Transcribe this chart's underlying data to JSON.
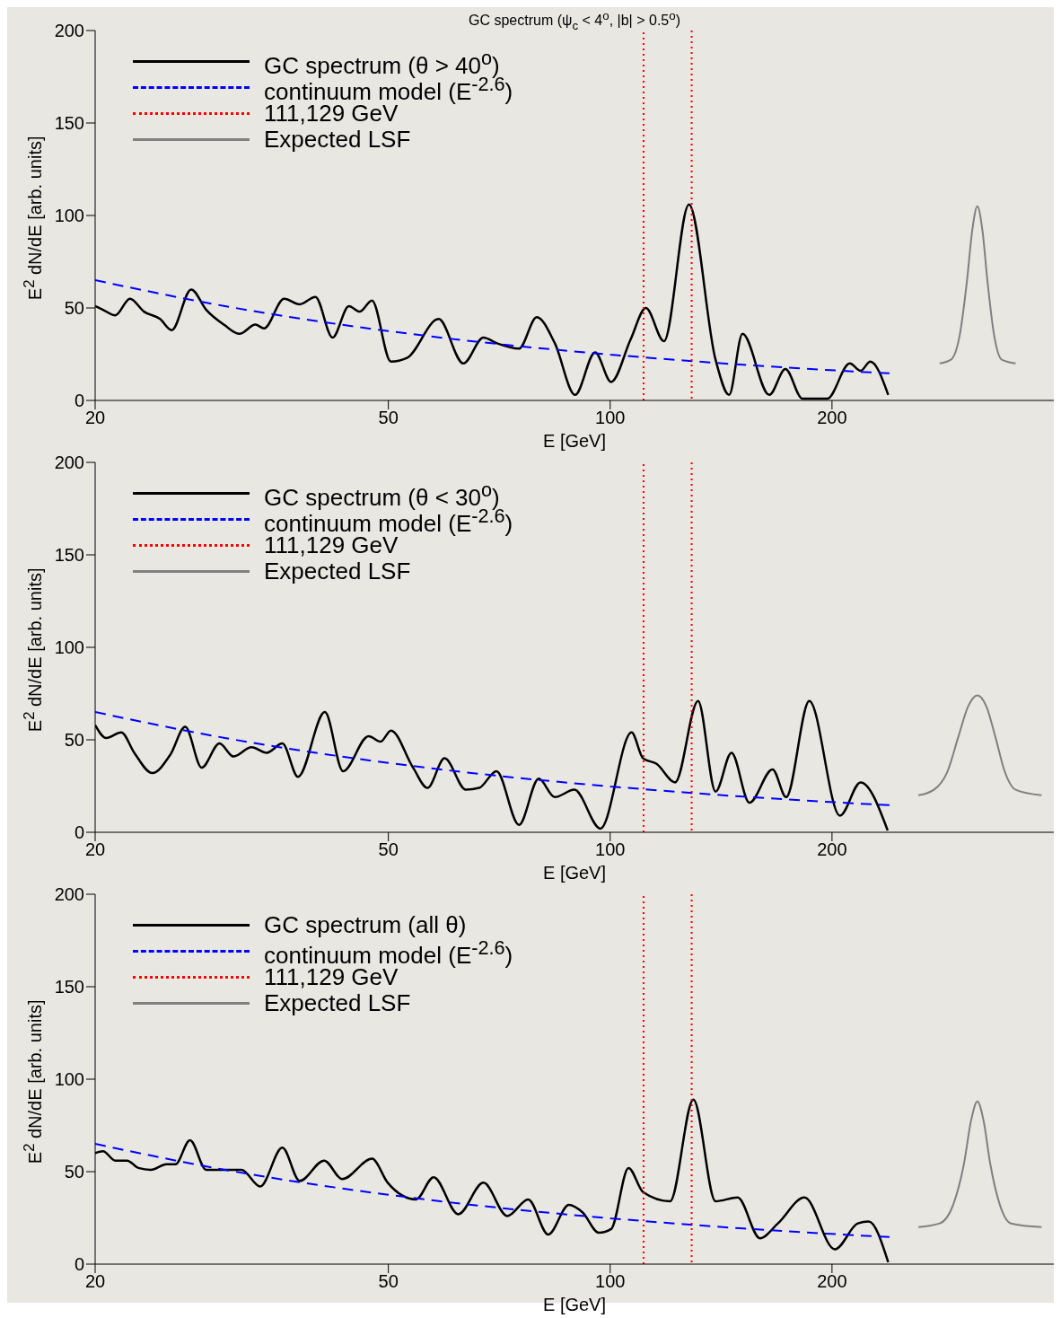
{
  "chart_data": [
    {
      "type": "line",
      "title": "GC spectrum (ψ$_{c}$ < 4$^{o}$, |b| > 0.5$^{o}$)",
      "xlabel": "E [GeV]",
      "ylabel": "E$^{2}$ dN/dE [arb. units]",
      "log": "x",
      "xlim": [
        20,
        400
      ],
      "xticks": [
        20,
        50,
        100,
        200
      ],
      "ylim": [
        0,
        200
      ],
      "yticks": [
        0,
        50,
        100,
        150,
        200
      ],
      "legend": "top left",
      "series": [
        {
          "name": "GC spectrum (θ > 40$^{o}$)",
          "color": "#000000",
          "x": [
            20,
            20.5,
            21.3,
            22.3,
            23.3,
            24.5,
            25.4,
            27.0,
            28.3,
            29.9,
            31.4,
            33.0,
            33.9,
            36.1,
            37.9,
            39.8,
            42.0,
            44.2,
            45.7,
            47.5,
            50.4,
            53.0,
            58.5,
            63.2,
            67.3,
            70.1,
            75.2,
            79.5,
            84.1,
            89.6,
            95.4,
            100.3,
            106.6,
            111.8,
            118.3,
            127.9,
            139,
            145,
            151.2,
            164.4,
            172.9,
            182.3,
            197.1,
            211.4,
            218.7,
            225.4,
            238.4
          ],
          "values": [
            51,
            49,
            46,
            55,
            48,
            44,
            38,
            60,
            49,
            41,
            36,
            41,
            39,
            55,
            52,
            56,
            34,
            51,
            48,
            54,
            21,
            23,
            44,
            20,
            34,
            31,
            28,
            45,
            31,
            3,
            26,
            10,
            33,
            50,
            32,
            106,
            22,
            3,
            36,
            3,
            17,
            1,
            1,
            20,
            16,
            21,
            3
          ]
        },
        {
          "name": "continuum model (E$^{-2.6}$)",
          "color": "#0000ff",
          "line_style": "dashed",
          "x": [
            20,
            30,
            50,
            75,
            100,
            150,
            240
          ],
          "values": [
            65,
            51,
            37.5,
            29.4,
            24.8,
            19.4,
            14.6
          ]
        },
        {
          "name": "111,129 GeV",
          "color": "#ff0000",
          "line_style": "dotted",
          "x": [
            111,
            111,
            120,
            129,
            129
          ],
          "values": [
            0,
            200,
            null,
            200,
            0
          ]
        },
        {
          "name": "Expected LSF",
          "color": "#808080",
          "x": [
            280,
            290,
            298,
            305,
            310,
            315,
            320,
            325,
            332,
            340,
            355
          ],
          "values": [
            20,
            22,
            35,
            65,
            92,
            105,
            92,
            65,
            35,
            22,
            20
          ]
        }
      ]
    },
    {
      "type": "line",
      "xlabel": "E [GeV]",
      "ylabel": "E$^{2}$ dN/dE [arb. units]",
      "log": "x",
      "xlim": [
        20,
        400
      ],
      "xticks": [
        20,
        50,
        100,
        200
      ],
      "ylim": [
        0,
        200
      ],
      "yticks": [
        0,
        50,
        100,
        150,
        200
      ],
      "legend": "top left",
      "series": [
        {
          "name": "GC spectrum (θ < 30$^{o}$)",
          "color": "#000000",
          "x": [
            20,
            20.7,
            21.7,
            22.6,
            23.9,
            25.3,
            26.5,
            27.9,
            29.5,
            30.8,
            32.6,
            34.2,
            35.9,
            37.7,
            41.0,
            43.4,
            47.0,
            48.8,
            50.4,
            54.0,
            56.5,
            59.6,
            63.7,
            66.4,
            70.1,
            75.2,
            80.0,
            84.1,
            89.4,
            97.0,
            106.9,
            110.8,
            115.6,
            122.5,
            131.6,
            139,
            146.1,
            154.5,
            166.1,
            173.3,
            186.3,
            205,
            218.7,
            238
          ],
          "values": [
            58,
            51,
            54,
            43,
            32,
            42,
            57,
            35,
            48,
            41,
            46,
            43,
            48,
            30,
            65,
            33,
            52,
            49,
            55,
            35,
            24,
            40,
            23,
            24,
            33,
            4,
            29,
            19,
            23,
            2,
            54,
            40,
            37,
            27,
            71,
            22,
            43,
            16,
            34,
            19,
            71,
            9,
            27,
            1
          ]
        },
        {
          "name": "continuum model (E$^{-2.6}$)",
          "color": "#0000ff",
          "line_style": "dashed",
          "x": [
            20,
            30,
            50,
            75,
            100,
            150,
            240
          ],
          "values": [
            65,
            51,
            37.5,
            29.4,
            24.8,
            19.4,
            14.6
          ]
        },
        {
          "name": "111,129 GeV",
          "color": "#ff0000",
          "line_style": "dotted",
          "x": [
            111,
            111,
            120,
            129,
            129
          ],
          "values": [
            0,
            200,
            null,
            200,
            0
          ]
        },
        {
          "name": "Expected LSF",
          "color": "#808080",
          "x": [
            262,
            275,
            287,
            297,
            306,
            315,
            324,
            333,
            343,
            355,
            385
          ],
          "values": [
            20,
            23,
            33,
            52,
            68,
            74,
            68,
            52,
            33,
            23,
            20
          ]
        }
      ]
    },
    {
      "type": "line",
      "xlabel": "E [GeV]",
      "ylabel": "E$^{2}$ dN/dE [arb. units]",
      "log": "x",
      "xlim": [
        20,
        400
      ],
      "xticks": [
        20,
        50,
        100,
        200
      ],
      "ylim": [
        0,
        200
      ],
      "yticks": [
        0,
        50,
        100,
        150,
        200
      ],
      "legend": "top left",
      "series": [
        {
          "name": "GC spectrum (all θ)",
          "color": "#000000",
          "x": [
            20,
            20.5,
            21.3,
            22.1,
            22.9,
            23.8,
            25.0,
            25.7,
            26.9,
            28.3,
            29.9,
            31.6,
            33.5,
            35.9,
            37.9,
            40.9,
            43.3,
            47.5,
            49.9,
            54.5,
            57.6,
            62.2,
            67.3,
            72.5,
            77.4,
            82.4,
            87.9,
            91.7,
            96.5,
            100.3,
            105.9,
            110.8,
            120.6,
            129.7,
            139,
            148.9,
            159.7,
            168.9,
            183.5,
            201.8,
            216.8,
            224.3,
            238.4
          ],
          "values": [
            60,
            61,
            56,
            56,
            52,
            51,
            54,
            54,
            67,
            51,
            51,
            51,
            42,
            63,
            45,
            56,
            46,
            57,
            44,
            35,
            47,
            27,
            44,
            26,
            35,
            16,
            32,
            28,
            17,
            19,
            52,
            39,
            34,
            89,
            34,
            36,
            14,
            22,
            36,
            8,
            22,
            23,
            1
          ]
        },
        {
          "name": "continuum model (E$^{-2.6}$)",
          "color": "#0000ff",
          "line_style": "dashed",
          "x": [
            20,
            30,
            50,
            75,
            100,
            150,
            240
          ],
          "values": [
            65,
            51,
            37.5,
            29.4,
            24.8,
            19.4,
            14.6
          ]
        },
        {
          "name": "111,129 GeV",
          "color": "#ff0000",
          "line_style": "dotted",
          "x": [
            111,
            111,
            120,
            129,
            129
          ],
          "values": [
            0,
            200,
            null,
            200,
            0
          ]
        },
        {
          "name": "Expected LSF",
          "color": "#808080",
          "x": [
            262,
            280,
            292,
            302,
            309,
            315,
            321,
            328,
            338,
            350,
            385
          ],
          "values": [
            20,
            22,
            32,
            54,
            78,
            88,
            78,
            54,
            32,
            22,
            20
          ]
        }
      ]
    }
  ]
}
